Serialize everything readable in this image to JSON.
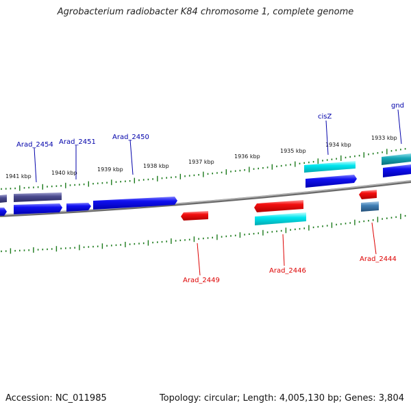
{
  "title": "Agrobacterium radiobacter K84 chromosome 1, complete genome",
  "accession": "Accession: NC_011985",
  "summary": "Topology: circular; Length: 4,005,130 bp; Genes: 3,804",
  "colors": {
    "forward_gene": "#0000ee",
    "forward_gene_shade": "#9999ff",
    "reverse_gene": "#ff0000",
    "reverse_gene_shade": "#ff9999",
    "rna": "#00e5ee",
    "pseudo": "#4b4b8f",
    "teal": "#16a6b6",
    "steel": "#3f7fb5",
    "backbone": "#808080",
    "tick": "#1b7a1b",
    "label_forward": "#0000aa",
    "label_reverse": "#dd0000"
  },
  "scale_labels": [
    "1941 kbp",
    "1940 kbp",
    "1939 kbp",
    "1938 kbp",
    "1937 kbp",
    "1936 kbp",
    "1935 kbp",
    "1934 kbp",
    "1933 kbp"
  ],
  "gene_labels_forward": [
    "Arad_2454",
    "Arad_2451",
    "Arad_2450",
    "cisZ",
    "gnd"
  ],
  "gene_labels_reverse": [
    "Arad_2449",
    "Arad_2446",
    "Arad_2444"
  ]
}
